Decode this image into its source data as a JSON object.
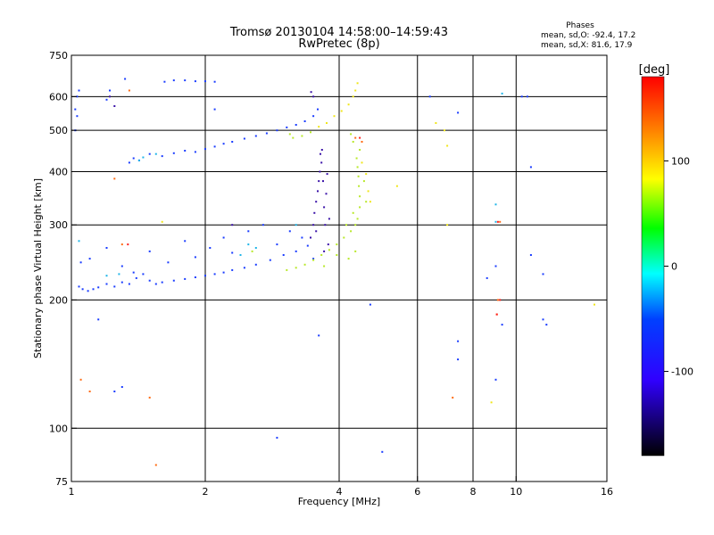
{
  "chart_data": {
    "type": "scatter",
    "title_line1": "Tromsø 20130104 14:58:00–14:59:43",
    "title_line2": "RwPretec (8p)",
    "stats": {
      "heading": "Phases",
      "line_o": "mean, sd,O: -92.4, 17.2",
      "line_x": "mean, sd,X:  81.6, 17.9"
    },
    "xlabel": "Frequency [MHz]",
    "ylabel": "Stationary phase Virtual Height [km]",
    "x_scale": "log",
    "y_scale": "log",
    "xlim": [
      1,
      16
    ],
    "ylim": [
      75,
      750
    ],
    "x_ticks": [
      1,
      2,
      4,
      6,
      8,
      10,
      16
    ],
    "x_tick_labels": [
      "1",
      "2",
      "4",
      "6",
      "8",
      "10",
      "16"
    ],
    "y_ticks": [
      75,
      100,
      200,
      300,
      400,
      500,
      600,
      750
    ],
    "y_tick_labels": [
      "75",
      "100",
      "200",
      "300",
      "400",
      "500",
      "600",
      "750"
    ],
    "grid_x": [
      2,
      4,
      6,
      8,
      10
    ],
    "grid_y": [
      100,
      200,
      300,
      400,
      500,
      600
    ],
    "colorbar": {
      "label": "[deg]",
      "range": [
        -180,
        180
      ],
      "ticks": [
        100,
        0,
        -100
      ],
      "tick_labels": [
        "100",
        "0",
        "-100"
      ]
    },
    "series": [
      {
        "color": "#1a3cff",
        "points": [
          [
            1.04,
            215
          ],
          [
            1.06,
            212
          ],
          [
            1.09,
            210
          ],
          [
            1.12,
            212
          ],
          [
            1.15,
            214
          ],
          [
            1.2,
            218
          ],
          [
            1.25,
            215
          ],
          [
            1.3,
            220
          ],
          [
            1.35,
            218
          ],
          [
            1.4,
            225
          ],
          [
            1.45,
            230
          ],
          [
            1.5,
            222
          ],
          [
            1.55,
            218
          ],
          [
            1.6,
            220
          ],
          [
            1.7,
            222
          ],
          [
            1.8,
            224
          ],
          [
            1.9,
            226
          ],
          [
            2.0,
            228
          ],
          [
            2.1,
            230
          ],
          [
            2.2,
            232
          ],
          [
            2.3,
            235
          ],
          [
            2.45,
            238
          ],
          [
            2.6,
            242
          ],
          [
            2.8,
            248
          ],
          [
            3.0,
            255
          ],
          [
            3.2,
            260
          ],
          [
            3.4,
            268
          ],
          [
            1.05,
            245
          ],
          [
            1.1,
            250
          ],
          [
            1.2,
            265
          ],
          [
            1.3,
            240
          ],
          [
            1.38,
            232
          ],
          [
            1.5,
            260
          ],
          [
            1.65,
            245
          ],
          [
            1.8,
            275
          ],
          [
            1.9,
            252
          ],
          [
            2.05,
            265
          ],
          [
            2.2,
            280
          ],
          [
            2.3,
            258
          ],
          [
            2.5,
            290
          ],
          [
            2.7,
            300
          ],
          [
            2.9,
            270
          ],
          [
            3.1,
            290
          ],
          [
            3.3,
            280
          ],
          [
            3.5,
            250
          ],
          [
            1.35,
            420
          ],
          [
            1.38,
            430
          ],
          [
            1.42,
            425
          ],
          [
            1.5,
            440
          ],
          [
            1.6,
            435
          ],
          [
            1.7,
            442
          ],
          [
            1.8,
            448
          ],
          [
            1.9,
            445
          ],
          [
            2.0,
            452
          ],
          [
            2.1,
            458
          ],
          [
            2.2,
            465
          ],
          [
            2.3,
            470
          ],
          [
            2.45,
            478
          ],
          [
            2.6,
            485
          ],
          [
            2.75,
            492
          ],
          [
            2.9,
            500
          ],
          [
            3.05,
            508
          ],
          [
            3.2,
            515
          ],
          [
            3.35,
            525
          ],
          [
            3.5,
            540
          ],
          [
            3.58,
            560
          ],
          [
            1.62,
            650
          ],
          [
            1.7,
            655
          ],
          [
            1.8,
            655
          ],
          [
            1.9,
            652
          ],
          [
            2.0,
            652
          ],
          [
            2.1,
            650
          ],
          [
            1.02,
            560
          ],
          [
            1.03,
            600
          ],
          [
            1.04,
            620
          ],
          [
            1.02,
            500
          ],
          [
            1.03,
            540
          ],
          [
            1.2,
            590
          ],
          [
            1.22,
            620
          ],
          [
            1.32,
            660
          ],
          [
            2.1,
            560
          ],
          [
            1.15,
            180
          ],
          [
            1.3,
            125
          ],
          [
            2.9,
            95
          ],
          [
            1.25,
            122
          ],
          [
            3.6,
            165
          ],
          [
            4.7,
            195
          ],
          [
            5.0,
            88
          ],
          [
            7.4,
            145
          ],
          [
            7.4,
            160
          ],
          [
            8.6,
            225
          ],
          [
            9.0,
            240
          ],
          [
            9.0,
            130
          ],
          [
            9.3,
            175
          ],
          [
            10.8,
            255
          ],
          [
            11.5,
            230
          ],
          [
            11.5,
            180
          ],
          [
            6.4,
            600
          ],
          [
            7.4,
            550
          ],
          [
            10.3,
            600
          ],
          [
            10.6,
            600
          ],
          [
            10.8,
            410
          ],
          [
            11.7,
            175
          ]
        ]
      },
      {
        "color": "#3a12a8",
        "points": [
          [
            3.45,
            280
          ],
          [
            3.5,
            300
          ],
          [
            3.52,
            320
          ],
          [
            3.55,
            340
          ],
          [
            3.58,
            360
          ],
          [
            3.6,
            380
          ],
          [
            3.62,
            400
          ],
          [
            3.65,
            420
          ],
          [
            3.63,
            440
          ],
          [
            3.68,
            380
          ],
          [
            3.7,
            330
          ],
          [
            3.72,
            300
          ],
          [
            3.74,
            355
          ],
          [
            3.76,
            395
          ],
          [
            3.7,
            260
          ],
          [
            3.66,
            450
          ],
          [
            3.5,
            600
          ],
          [
            3.46,
            615
          ],
          [
            3.55,
            290
          ],
          [
            3.8,
            310
          ],
          [
            3.78,
            270
          ],
          [
            2.3,
            300
          ],
          [
            1.22,
            600
          ],
          [
            1.25,
            570
          ]
        ]
      },
      {
        "color": "#1fb5e8",
        "points": [
          [
            1.2,
            228
          ],
          [
            1.28,
            230
          ],
          [
            1.42,
            425
          ],
          [
            1.45,
            432
          ],
          [
            1.55,
            440
          ],
          [
            2.5,
            270
          ],
          [
            2.4,
            255
          ],
          [
            2.6,
            265
          ],
          [
            3.2,
            300
          ],
          [
            1.04,
            275
          ],
          [
            9.0,
            335
          ],
          [
            9.0,
            305
          ],
          [
            9.3,
            610
          ]
        ]
      },
      {
        "color": "#b8e82a",
        "points": [
          [
            3.05,
            235
          ],
          [
            3.2,
            238
          ],
          [
            3.35,
            242
          ],
          [
            3.5,
            248
          ],
          [
            3.65,
            255
          ],
          [
            3.8,
            262
          ],
          [
            3.95,
            270
          ],
          [
            4.1,
            280
          ],
          [
            4.25,
            290
          ],
          [
            4.35,
            300
          ],
          [
            4.4,
            310
          ],
          [
            4.45,
            330
          ],
          [
            4.45,
            350
          ],
          [
            4.43,
            370
          ],
          [
            4.42,
            390
          ],
          [
            4.4,
            410
          ],
          [
            4.38,
            430
          ],
          [
            4.45,
            450
          ],
          [
            4.3,
            470
          ],
          [
            4.25,
            490
          ],
          [
            4.15,
            300
          ],
          [
            4.3,
            320
          ],
          [
            4.35,
            260
          ],
          [
            4.2,
            250
          ],
          [
            3.95,
            255
          ],
          [
            3.7,
            240
          ],
          [
            3.1,
            490
          ],
          [
            3.15,
            480
          ],
          [
            3.3,
            485
          ],
          [
            3.45,
            495
          ],
          [
            2.55,
            260
          ],
          [
            4.6,
            340
          ],
          [
            4.55,
            380
          ]
        ]
      },
      {
        "color": "#f0e61a",
        "points": [
          [
            3.6,
            510
          ],
          [
            3.75,
            520
          ],
          [
            3.9,
            540
          ],
          [
            4.05,
            555
          ],
          [
            4.2,
            575
          ],
          [
            4.3,
            600
          ],
          [
            4.35,
            620
          ],
          [
            4.4,
            645
          ],
          [
            4.5,
            420
          ],
          [
            4.6,
            395
          ],
          [
            4.65,
            360
          ],
          [
            4.7,
            340
          ],
          [
            5.4,
            370
          ],
          [
            6.6,
            520
          ],
          [
            6.9,
            500
          ],
          [
            7.0,
            460
          ],
          [
            7.0,
            300
          ],
          [
            8.8,
            115
          ],
          [
            15.0,
            195
          ],
          [
            1.6,
            305
          ]
        ]
      },
      {
        "color": "#ff6a10",
        "points": [
          [
            1.25,
            385
          ],
          [
            1.3,
            270
          ],
          [
            1.35,
            620
          ],
          [
            1.5,
            118
          ],
          [
            1.05,
            130
          ],
          [
            1.1,
            122
          ],
          [
            4.35,
            480
          ],
          [
            4.5,
            470
          ],
          [
            7.2,
            118
          ],
          [
            9.1,
            200
          ],
          [
            9.05,
            185
          ],
          [
            9.2,
            305
          ],
          [
            1.55,
            82
          ]
        ]
      },
      {
        "color": "#ff1e1e",
        "points": [
          [
            1.34,
            270
          ],
          [
            4.45,
            480
          ],
          [
            9.05,
            185
          ],
          [
            9.2,
            200
          ],
          [
            9.1,
            305
          ]
        ]
      }
    ]
  }
}
